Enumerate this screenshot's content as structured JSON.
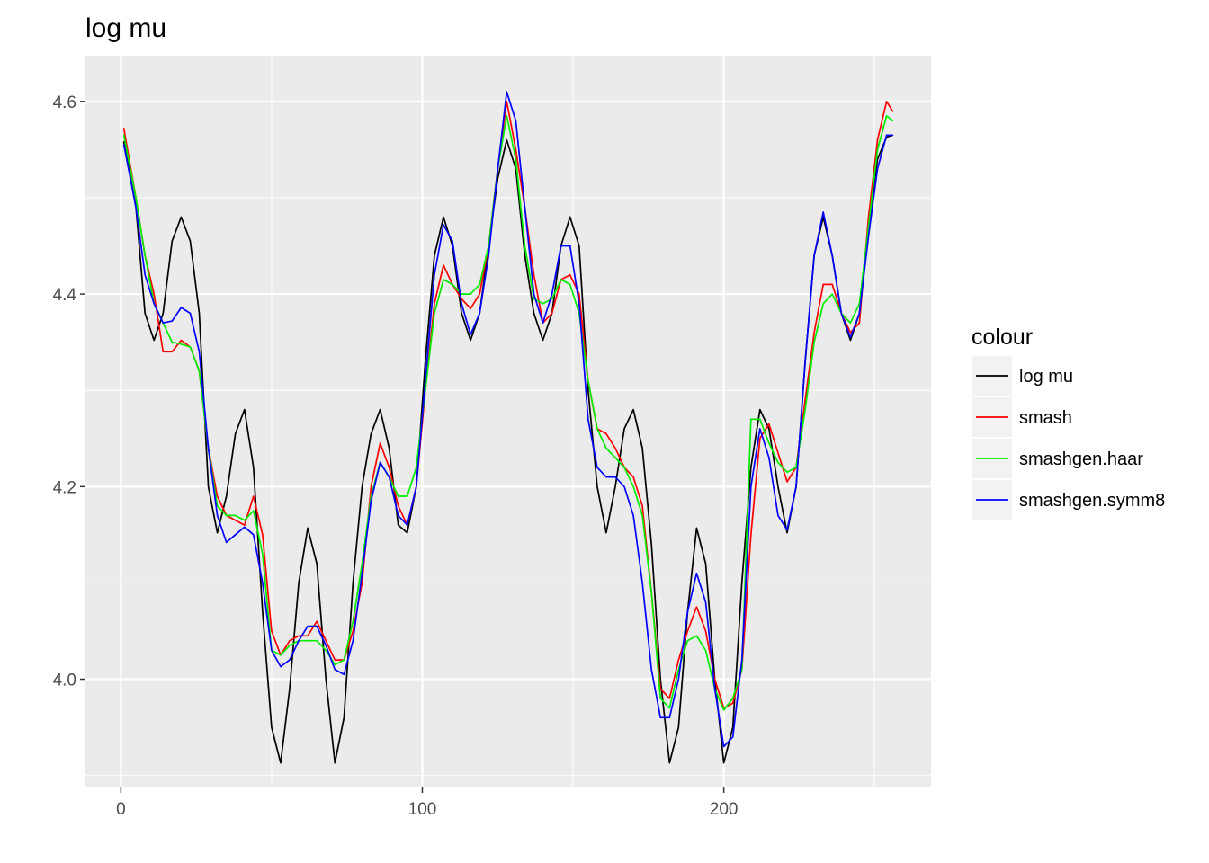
{
  "chart_data": {
    "type": "line",
    "title": "log mu",
    "xlabel": "",
    "ylabel": "",
    "xlim": [
      -11.75,
      268.75
    ],
    "ylim": [
      3.8875,
      4.6475
    ],
    "x_ticks": [
      0,
      100,
      200
    ],
    "y_ticks": [
      4.0,
      4.2,
      4.4,
      4.6
    ],
    "x_tick_labels": [
      "0",
      "100",
      "200"
    ],
    "y_tick_labels": [
      "4.0",
      "4.2",
      "4.4",
      "4.6"
    ],
    "grid": true,
    "legend": {
      "title": "colour",
      "position": "right",
      "entries": [
        "log mu",
        "smash",
        "smashgen.haar",
        "smashgen.symm8"
      ]
    },
    "series": [
      {
        "name": "log mu",
        "color": "#000000",
        "x": [
          1,
          5,
          8,
          11,
          14,
          17,
          20,
          23,
          26,
          29,
          32,
          35,
          38,
          41,
          44,
          47,
          50,
          53,
          56,
          59,
          62,
          65,
          68,
          71,
          74,
          77,
          80,
          83,
          86,
          89,
          92,
          95,
          98,
          101,
          104,
          107,
          110,
          113,
          116,
          119,
          122,
          125,
          128,
          131,
          134,
          137,
          140,
          143,
          146,
          149,
          152,
          155,
          158,
          161,
          164,
          167,
          170,
          173,
          176,
          179,
          182,
          185,
          188,
          191,
          194,
          197,
          200,
          203,
          206,
          209,
          212,
          215,
          218,
          221,
          224,
          227,
          230,
          233,
          236,
          239,
          242,
          245,
          248,
          251,
          254,
          256
        ],
        "y": [
          4.558,
          4.49,
          4.38,
          4.352,
          4.38,
          4.455,
          4.48,
          4.455,
          4.38,
          4.2,
          4.152,
          4.19,
          4.255,
          4.28,
          4.22,
          4.07,
          3.95,
          3.913,
          3.99,
          4.1,
          4.157,
          4.12,
          4.0,
          3.913,
          3.96,
          4.1,
          4.2,
          4.255,
          4.28,
          4.24,
          4.16,
          4.152,
          4.2,
          4.33,
          4.44,
          4.48,
          4.45,
          4.38,
          4.352,
          4.38,
          4.45,
          4.52,
          4.56,
          4.53,
          4.44,
          4.38,
          4.352,
          4.38,
          4.45,
          4.48,
          4.45,
          4.3,
          4.2,
          4.152,
          4.2,
          4.26,
          4.28,
          4.24,
          4.14,
          4.0,
          3.913,
          3.95,
          4.07,
          4.157,
          4.12,
          4.0,
          3.913,
          3.95,
          4.1,
          4.22,
          4.28,
          4.26,
          4.2,
          4.152,
          4.2,
          4.33,
          4.44,
          4.48,
          4.44,
          4.38,
          4.352,
          4.38,
          4.47,
          4.54,
          4.563,
          4.565
        ]
      },
      {
        "name": "smash",
        "color": "#ff0000",
        "x": [
          1,
          5,
          8,
          11,
          14,
          17,
          20,
          23,
          26,
          29,
          32,
          35,
          38,
          41,
          44,
          47,
          50,
          53,
          56,
          59,
          62,
          65,
          68,
          71,
          74,
          77,
          80,
          83,
          86,
          89,
          92,
          95,
          98,
          101,
          104,
          107,
          110,
          113,
          116,
          119,
          122,
          125,
          128,
          131,
          134,
          137,
          140,
          143,
          146,
          149,
          152,
          155,
          158,
          161,
          164,
          167,
          170,
          173,
          176,
          179,
          182,
          185,
          188,
          191,
          194,
          197,
          200,
          203,
          206,
          209,
          212,
          215,
          218,
          221,
          224,
          227,
          230,
          233,
          236,
          239,
          242,
          245,
          248,
          251,
          254,
          256
        ],
        "y": [
          4.572,
          4.5,
          4.44,
          4.4,
          4.34,
          4.34,
          4.352,
          4.345,
          4.32,
          4.24,
          4.19,
          4.17,
          4.165,
          4.16,
          4.19,
          4.15,
          4.05,
          4.025,
          4.04,
          4.045,
          4.045,
          4.06,
          4.04,
          4.02,
          4.02,
          4.05,
          4.1,
          4.2,
          4.245,
          4.22,
          4.18,
          4.16,
          4.2,
          4.3,
          4.39,
          4.43,
          4.41,
          4.395,
          4.385,
          4.4,
          4.45,
          4.53,
          4.6,
          4.55,
          4.49,
          4.42,
          4.37,
          4.38,
          4.415,
          4.42,
          4.4,
          4.31,
          4.26,
          4.255,
          4.24,
          4.22,
          4.21,
          4.18,
          4.09,
          3.99,
          3.98,
          4.02,
          4.05,
          4.075,
          4.05,
          4.0,
          3.97,
          3.975,
          4.01,
          4.15,
          4.25,
          4.265,
          4.235,
          4.205,
          4.22,
          4.29,
          4.36,
          4.41,
          4.41,
          4.38,
          4.36,
          4.37,
          4.48,
          4.56,
          4.6,
          4.59
        ]
      },
      {
        "name": "smashgen.haar",
        "color": "#00ee00",
        "x": [
          1,
          5,
          8,
          11,
          14,
          17,
          20,
          23,
          26,
          29,
          32,
          35,
          38,
          41,
          44,
          47,
          50,
          53,
          56,
          59,
          62,
          65,
          68,
          71,
          74,
          77,
          80,
          83,
          86,
          89,
          92,
          95,
          98,
          101,
          104,
          107,
          110,
          113,
          116,
          119,
          122,
          125,
          128,
          131,
          134,
          137,
          140,
          143,
          146,
          149,
          152,
          155,
          158,
          161,
          164,
          167,
          170,
          173,
          176,
          179,
          182,
          185,
          188,
          191,
          194,
          197,
          200,
          203,
          206,
          209,
          212,
          215,
          218,
          221,
          224,
          227,
          230,
          233,
          236,
          239,
          242,
          245,
          248,
          251,
          254,
          256
        ],
        "y": [
          4.565,
          4.5,
          4.44,
          4.39,
          4.37,
          4.35,
          4.348,
          4.345,
          4.32,
          4.24,
          4.18,
          4.17,
          4.17,
          4.165,
          4.175,
          4.13,
          4.03,
          4.025,
          4.035,
          4.04,
          4.04,
          4.04,
          4.03,
          4.015,
          4.02,
          4.06,
          4.12,
          4.19,
          4.225,
          4.21,
          4.19,
          4.19,
          4.22,
          4.3,
          4.38,
          4.415,
          4.41,
          4.4,
          4.4,
          4.41,
          4.45,
          4.53,
          4.585,
          4.54,
          4.45,
          4.395,
          4.39,
          4.395,
          4.415,
          4.41,
          4.38,
          4.31,
          4.26,
          4.24,
          4.23,
          4.22,
          4.2,
          4.17,
          4.09,
          3.98,
          3.97,
          4.01,
          4.04,
          4.045,
          4.03,
          3.99,
          3.968,
          3.98,
          4.01,
          4.27,
          4.27,
          4.245,
          4.225,
          4.215,
          4.22,
          4.28,
          4.35,
          4.39,
          4.4,
          4.38,
          4.37,
          4.39,
          4.47,
          4.55,
          4.585,
          4.58
        ]
      },
      {
        "name": "smashgen.symm8",
        "color": "#0000ff",
        "x": [
          1,
          5,
          8,
          11,
          14,
          17,
          20,
          23,
          26,
          29,
          32,
          35,
          38,
          41,
          44,
          47,
          50,
          53,
          56,
          59,
          62,
          65,
          68,
          71,
          74,
          77,
          80,
          83,
          86,
          89,
          92,
          95,
          98,
          101,
          104,
          107,
          110,
          113,
          116,
          119,
          122,
          125,
          128,
          131,
          134,
          137,
          140,
          143,
          146,
          149,
          152,
          155,
          158,
          161,
          164,
          167,
          170,
          173,
          176,
          179,
          182,
          185,
          188,
          191,
          194,
          197,
          200,
          203,
          206,
          209,
          212,
          215,
          218,
          221,
          224,
          227,
          230,
          233,
          236,
          239,
          242,
          245,
          248,
          251,
          254,
          256
        ],
        "y": [
          4.555,
          4.49,
          4.42,
          4.39,
          4.37,
          4.372,
          4.386,
          4.38,
          4.34,
          4.24,
          4.17,
          4.142,
          4.15,
          4.158,
          4.15,
          4.1,
          4.03,
          4.013,
          4.02,
          4.04,
          4.055,
          4.055,
          4.035,
          4.01,
          4.005,
          4.04,
          4.11,
          4.185,
          4.225,
          4.21,
          4.17,
          4.16,
          4.2,
          4.31,
          4.42,
          4.472,
          4.455,
          4.39,
          4.358,
          4.38,
          4.44,
          4.53,
          4.61,
          4.58,
          4.49,
          4.4,
          4.37,
          4.4,
          4.45,
          4.45,
          4.39,
          4.27,
          4.22,
          4.21,
          4.21,
          4.2,
          4.17,
          4.1,
          4.01,
          3.96,
          3.96,
          4.0,
          4.07,
          4.11,
          4.08,
          3.99,
          3.93,
          3.94,
          4.02,
          4.2,
          4.26,
          4.23,
          4.17,
          4.155,
          4.2,
          4.33,
          4.44,
          4.485,
          4.44,
          4.38,
          4.355,
          4.38,
          4.46,
          4.53,
          4.565,
          4.565
        ]
      }
    ]
  },
  "colors": {
    "panel_background": "#ebebeb",
    "grid_major": "#ffffff",
    "tick_text": "#4d4d4d",
    "legend_key_background": "#f2f2f2"
  }
}
